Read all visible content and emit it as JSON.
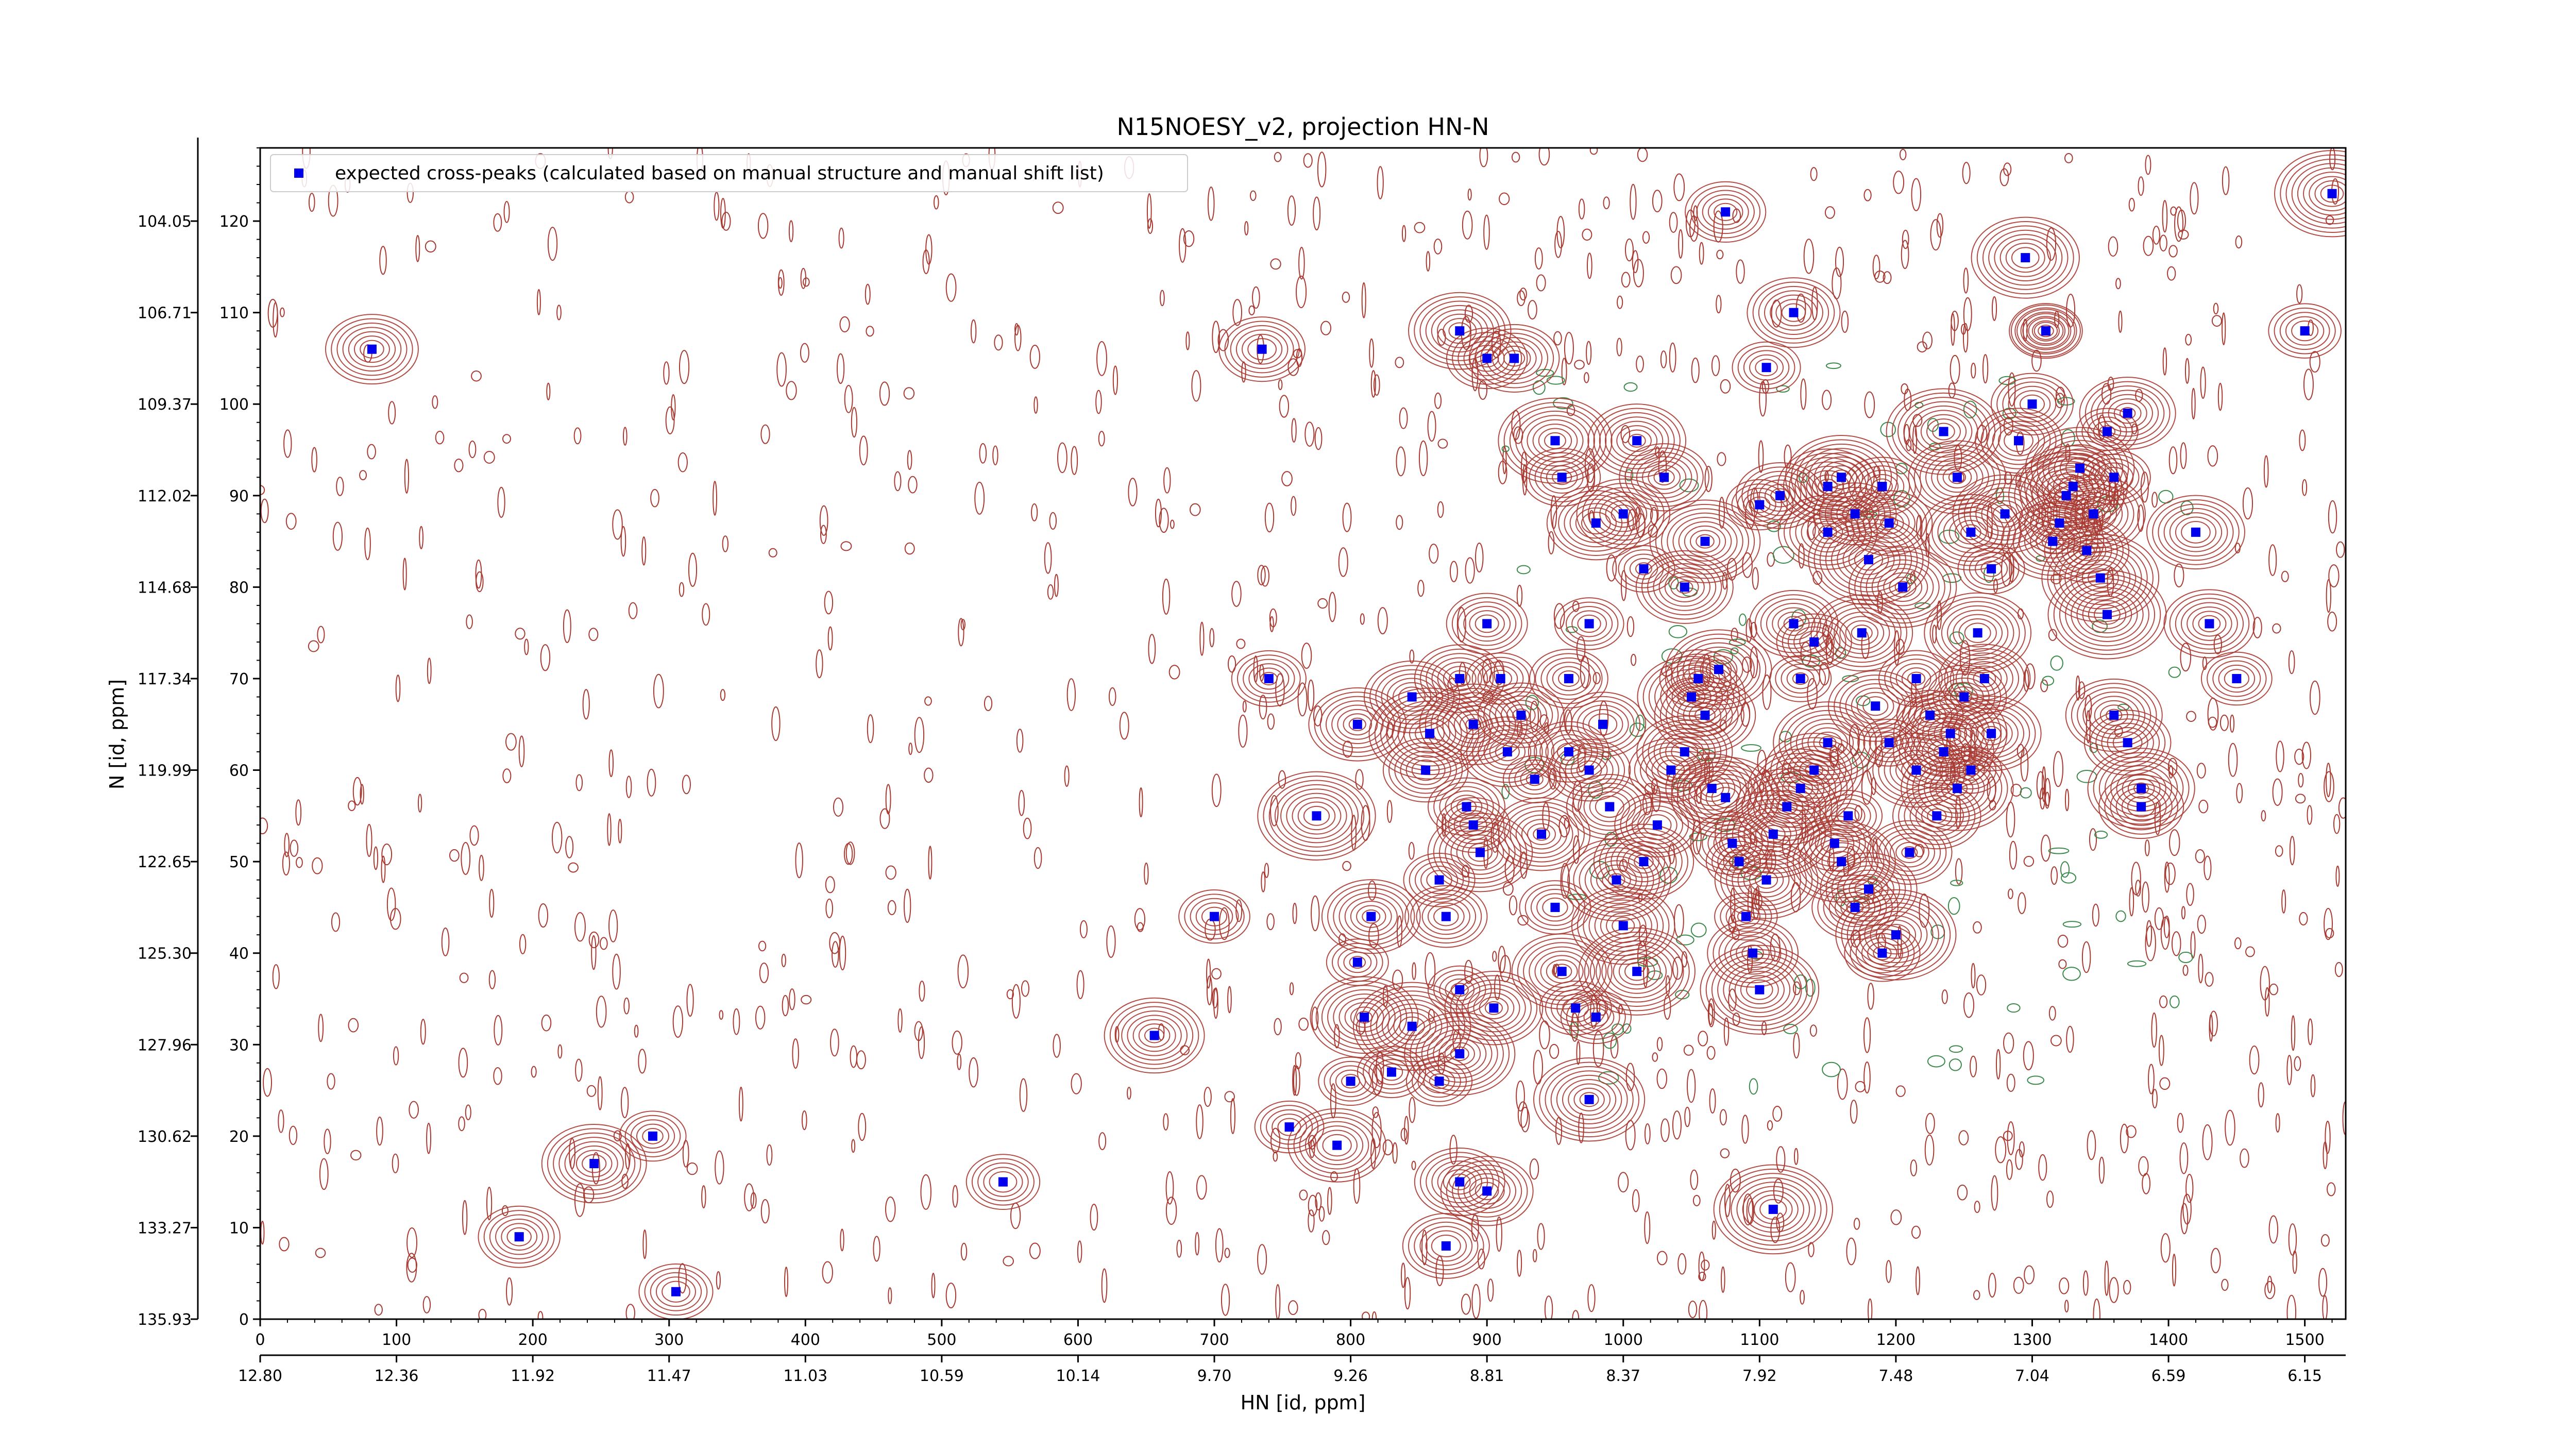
{
  "chart_data": {
    "type": "scatter",
    "title": "N15NOESY_v2, projection HN-N",
    "xlabel": "HN [id, ppm]",
    "ylabel": "N [id, ppm]",
    "xlim": [
      0,
      1530
    ],
    "ylim": [
      0,
      128
    ],
    "x_ticks": [
      0,
      100,
      200,
      300,
      400,
      500,
      600,
      700,
      800,
      900,
      1000,
      1100,
      1200,
      1300,
      1400,
      1500
    ],
    "x_ppm_ticks": [
      "12.80",
      "12.36",
      "11.92",
      "11.47",
      "11.03",
      "10.59",
      "10.14",
      "9.70",
      "9.26",
      "8.81",
      "8.37",
      "7.92",
      "7.48",
      "7.04",
      "6.59",
      "6.15"
    ],
    "y_ticks": [
      0,
      10,
      20,
      30,
      40,
      50,
      60,
      70,
      80,
      90,
      100,
      110,
      120
    ],
    "y_ppm_ticks": [
      "135.93",
      "133.27",
      "130.62",
      "127.96",
      "125.30",
      "122.65",
      "119.99",
      "117.34",
      "114.68",
      "112.02",
      "109.37",
      "106.71",
      "104.05"
    ],
    "legend_position": "upper-left",
    "contour_colors": {
      "positive": "#a83a32",
      "negative": "#3b8a4b"
    },
    "series": [
      {
        "name": "expected cross-peaks (calculated based on manual structure and manual shift list)",
        "color": "#0000ee",
        "marker": "square",
        "points": [
          [
            190,
            9
          ],
          [
            245,
            17
          ],
          [
            288,
            20
          ],
          [
            305,
            3
          ],
          [
            545,
            15
          ],
          [
            82,
            106
          ],
          [
            735,
            106
          ],
          [
            656,
            31
          ],
          [
            700,
            44
          ],
          [
            740,
            70
          ],
          [
            775,
            55
          ],
          [
            755,
            21
          ],
          [
            790,
            19
          ],
          [
            800,
            26
          ],
          [
            810,
            33
          ],
          [
            815,
            44
          ],
          [
            805,
            39
          ],
          [
            805,
            65
          ],
          [
            845,
            68
          ],
          [
            858,
            64
          ],
          [
            855,
            60
          ],
          [
            845,
            32
          ],
          [
            830,
            27
          ],
          [
            865,
            26
          ],
          [
            880,
            29
          ],
          [
            865,
            48
          ],
          [
            870,
            44
          ],
          [
            885,
            56
          ],
          [
            890,
            54
          ],
          [
            895,
            51
          ],
          [
            880,
            36
          ],
          [
            905,
            34
          ],
          [
            870,
            8
          ],
          [
            880,
            15
          ],
          [
            900,
            14
          ],
          [
            880,
            70
          ],
          [
            890,
            65
          ],
          [
            900,
            76
          ],
          [
            910,
            70
          ],
          [
            915,
            62
          ],
          [
            925,
            66
          ],
          [
            935,
            59
          ],
          [
            940,
            53
          ],
          [
            950,
            45
          ],
          [
            955,
            38
          ],
          [
            965,
            34
          ],
          [
            975,
            24
          ],
          [
            980,
            33
          ],
          [
            960,
            70
          ],
          [
            960,
            62
          ],
          [
            975,
            60
          ],
          [
            975,
            76
          ],
          [
            985,
            65
          ],
          [
            990,
            56
          ],
          [
            995,
            48
          ],
          [
            1000,
            43
          ],
          [
            1010,
            38
          ],
          [
            1015,
            50
          ],
          [
            1025,
            54
          ],
          [
            1035,
            60
          ],
          [
            1045,
            62
          ],
          [
            1050,
            68
          ],
          [
            1055,
            70
          ],
          [
            1060,
            66
          ],
          [
            1070,
            71
          ],
          [
            1065,
            58
          ],
          [
            1075,
            57
          ],
          [
            1080,
            52
          ],
          [
            1085,
            50
          ],
          [
            1090,
            44
          ],
          [
            1095,
            40
          ],
          [
            1100,
            36
          ],
          [
            1105,
            48
          ],
          [
            1110,
            53
          ],
          [
            1120,
            56
          ],
          [
            1130,
            58
          ],
          [
            1140,
            60
          ],
          [
            1150,
            63
          ],
          [
            1155,
            52
          ],
          [
            1160,
            50
          ],
          [
            1165,
            55
          ],
          [
            1170,
            45
          ],
          [
            1180,
            47
          ],
          [
            1190,
            40
          ],
          [
            1200,
            42
          ],
          [
            1210,
            51
          ],
          [
            1110,
            12
          ],
          [
            880,
            108
          ],
          [
            900,
            105
          ],
          [
            920,
            105
          ],
          [
            950,
            96
          ],
          [
            955,
            92
          ],
          [
            980,
            87
          ],
          [
            1000,
            88
          ],
          [
            1010,
            96
          ],
          [
            1015,
            82
          ],
          [
            1030,
            92
          ],
          [
            1045,
            80
          ],
          [
            1060,
            85
          ],
          [
            1075,
            121
          ],
          [
            1100,
            89
          ],
          [
            1115,
            90
          ],
          [
            1125,
            76
          ],
          [
            1130,
            70
          ],
          [
            1140,
            74
          ],
          [
            1150,
            86
          ],
          [
            1160,
            92
          ],
          [
            1170,
            88
          ],
          [
            1180,
            83
          ],
          [
            1190,
            91
          ],
          [
            1195,
            87
          ],
          [
            1205,
            80
          ],
          [
            1215,
            70
          ],
          [
            1225,
            66
          ],
          [
            1235,
            62
          ],
          [
            1245,
            58
          ],
          [
            1250,
            68
          ],
          [
            1260,
            75
          ],
          [
            1270,
            82
          ],
          [
            1280,
            88
          ],
          [
            1290,
            96
          ],
          [
            1300,
            100
          ],
          [
            1310,
            108
          ],
          [
            1315,
            85
          ],
          [
            1325,
            90
          ],
          [
            1335,
            93
          ],
          [
            1345,
            88
          ],
          [
            1355,
            77
          ],
          [
            1360,
            66
          ],
          [
            1370,
            63
          ],
          [
            1380,
            58
          ],
          [
            1295,
            116
          ],
          [
            1310,
            108
          ],
          [
            1320,
            87
          ],
          [
            1330,
            91
          ],
          [
            1340,
            84
          ],
          [
            1350,
            81
          ],
          [
            1355,
            97
          ],
          [
            1360,
            92
          ],
          [
            1370,
            99
          ],
          [
            1380,
            56
          ],
          [
            1420,
            86
          ],
          [
            1430,
            76
          ],
          [
            1450,
            70
          ],
          [
            1500,
            108
          ],
          [
            1520,
            123
          ],
          [
            1235,
            97
          ],
          [
            1245,
            92
          ],
          [
            1255,
            86
          ],
          [
            1265,
            70
          ],
          [
            1270,
            64
          ],
          [
            1125,
            110
          ],
          [
            1105,
            104
          ],
          [
            1150,
            91
          ],
          [
            1175,
            75
          ],
          [
            1185,
            67
          ],
          [
            1195,
            63
          ],
          [
            1215,
            60
          ],
          [
            1230,
            55
          ],
          [
            1240,
            64
          ],
          [
            1255,
            60
          ]
        ]
      }
    ]
  }
}
